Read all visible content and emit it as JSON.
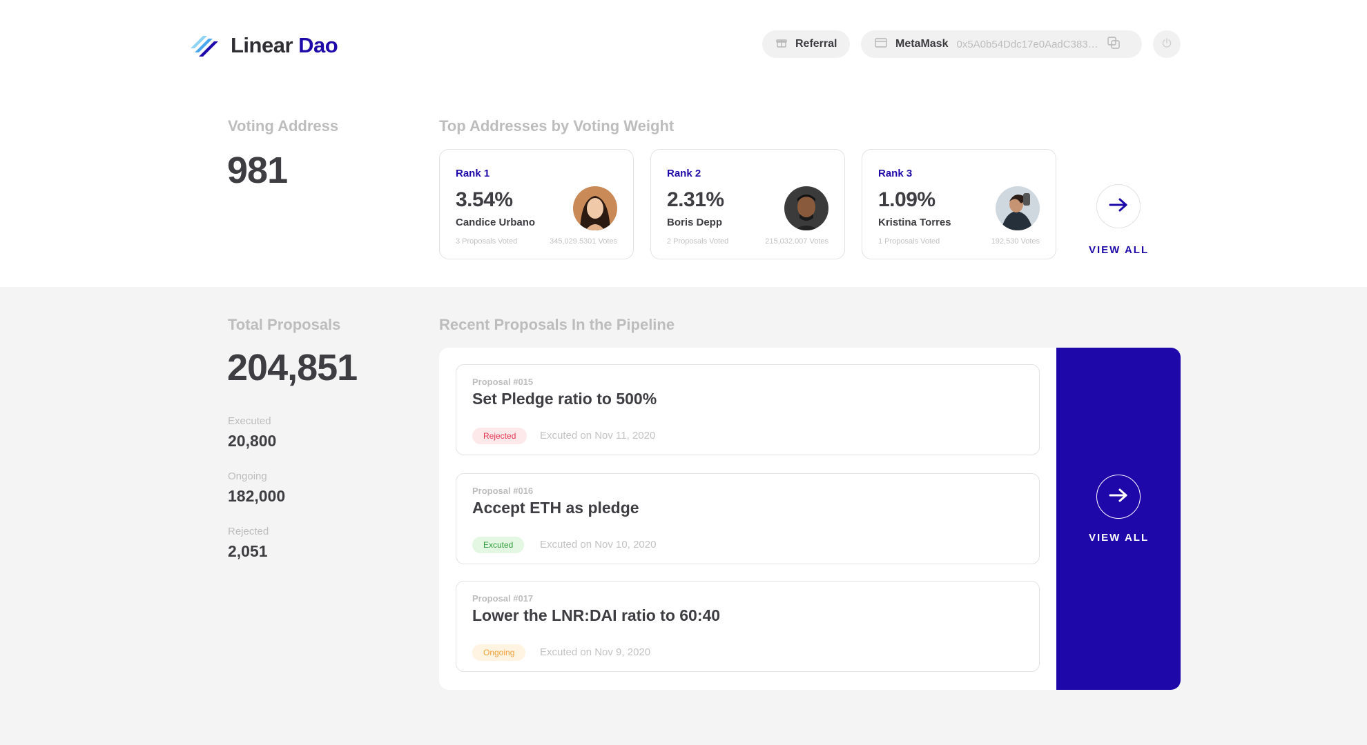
{
  "header": {
    "logo_text": "Linear",
    "logo_accent": "Dao",
    "referral_label": "Referral",
    "wallet_name": "MetaMask",
    "wallet_address": "0x5A0b54Ddc17e0AadC383…"
  },
  "voting": {
    "label": "Voting Address",
    "value": "981"
  },
  "top_addresses": {
    "title": "Top Addresses by Voting Weight",
    "cards": [
      {
        "rank": "Rank 1",
        "percent": "3.54%",
        "name": "Candice Urbano",
        "proposals": "3 Proposals Voted",
        "votes": "345,029.5301 Votes"
      },
      {
        "rank": "Rank 2",
        "percent": "2.31%",
        "name": "Boris Depp",
        "proposals": "2 Proposals Voted",
        "votes": "215,032.007 Votes"
      },
      {
        "rank": "Rank 3",
        "percent": "1.09%",
        "name": "Kristina Torres",
        "proposals": "1 Proposals Voted",
        "votes": "192,530 Votes"
      }
    ],
    "view_all": "VIEW ALL"
  },
  "totals": {
    "label": "Total Proposals",
    "value": "204,851",
    "executed_label": "Executed",
    "executed_value": "20,800",
    "ongoing_label": "Ongoing",
    "ongoing_value": "182,000",
    "rejected_label": "Rejected",
    "rejected_value": "2,051"
  },
  "pipeline": {
    "title": "Recent Proposals In the Pipeline",
    "proposals": [
      {
        "number": "Proposal #015",
        "title": "Set Pledge ratio to 500%",
        "status": "Rejected",
        "date": "Excuted on Nov 11, 2020"
      },
      {
        "number": "Proposal #016",
        "title": "Accept ETH as pledge",
        "status": "Excuted",
        "date": "Excuted on Nov 10, 2020"
      },
      {
        "number": "Proposal #017",
        "title": "Lower the LNR:DAI ratio to 60:40",
        "status": "Ongoing",
        "date": "Excuted on Nov 9, 2020"
      }
    ],
    "view_all": "VIEW ALL"
  },
  "colors": {
    "brand": "#1f08aa",
    "rejected": "#e2384f",
    "executed": "#2f9c3b",
    "ongoing": "#f0a23a"
  },
  "icons": [
    "logo-mark-icon",
    "gift-icon",
    "wallet-icon",
    "copy-icon",
    "power-icon",
    "arrow-right-icon"
  ]
}
